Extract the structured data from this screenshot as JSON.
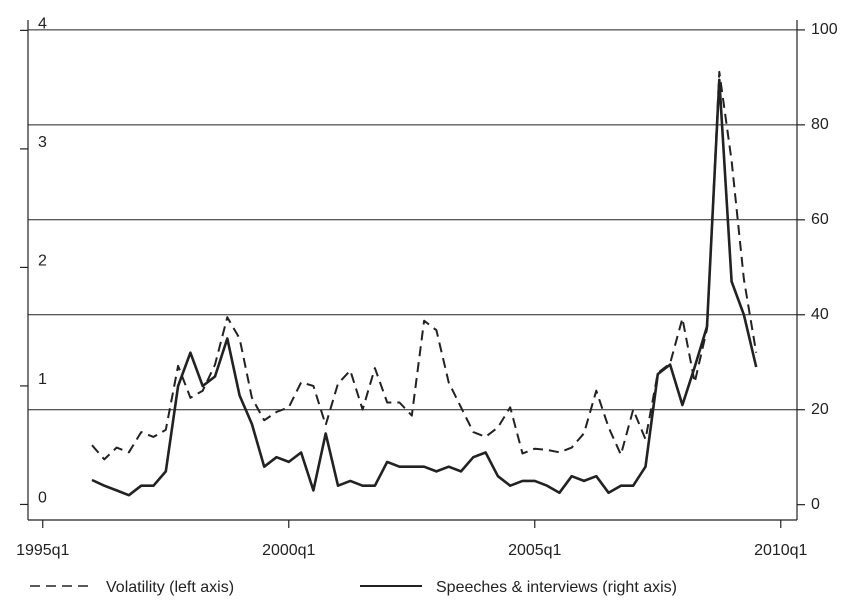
{
  "chart_data": {
    "type": "line",
    "x": [
      1996,
      1996.25,
      1996.5,
      1996.75,
      1997,
      1997.25,
      1997.5,
      1997.75,
      1998,
      1998.25,
      1998.5,
      1998.75,
      1999,
      1999.25,
      1999.5,
      1999.75,
      2000,
      2000.25,
      2000.5,
      2000.75,
      2001,
      2001.25,
      2001.5,
      2001.75,
      2002,
      2002.25,
      2002.5,
      2002.75,
      2003,
      2003.25,
      2003.5,
      2003.75,
      2004,
      2004.25,
      2004.5,
      2004.75,
      2005,
      2005.25,
      2005.5,
      2005.75,
      2006,
      2006.25,
      2006.5,
      2006.75,
      2007,
      2007.25,
      2007.5,
      2007.75,
      2008,
      2008.25,
      2008.5,
      2008.75,
      2009,
      2009.25,
      2009.5
    ],
    "series": [
      {
        "name": "Volatility (left axis)",
        "color": "#222222",
        "style": "dashed",
        "values": [
          0.5,
          0.38,
          0.48,
          0.44,
          0.61,
          0.57,
          0.63,
          1.17,
          0.9,
          0.96,
          1.18,
          1.58,
          1.4,
          0.9,
          0.71,
          0.78,
          0.82,
          1.03,
          1.0,
          0.67,
          1.02,
          1.13,
          0.8,
          1.15,
          0.86,
          0.86,
          0.75,
          1.55,
          1.47,
          1.03,
          0.82,
          0.61,
          0.57,
          0.65,
          0.82,
          0.43,
          0.47,
          0.46,
          0.44,
          0.48,
          0.6,
          0.96,
          0.65,
          0.42,
          0.8,
          0.55,
          1.11,
          1.19,
          1.57,
          1.03,
          1.48,
          3.65,
          2.9,
          1.9,
          1.28
        ]
      },
      {
        "name": "Speeches & interviews (right axis)",
        "color": "#222222",
        "style": "solid",
        "axis": "y2",
        "values": [
          5.2,
          4,
          3,
          2,
          4,
          4,
          7,
          25,
          32,
          25,
          27,
          35,
          23,
          17,
          8,
          10,
          9,
          11,
          3,
          15,
          4,
          5,
          4,
          4,
          9,
          8,
          8,
          8,
          7,
          8,
          7,
          10,
          11,
          6,
          4,
          5,
          5,
          4,
          2.5,
          6,
          5,
          6,
          2.5,
          4,
          4,
          8,
          27.5,
          29.5,
          21,
          29,
          37.5,
          89.5,
          47,
          40,
          29
        ]
      }
    ],
    "xlim": [
      1994.7,
      2010.33
    ],
    "xticks": [
      {
        "value": 1995,
        "label": "1995q1"
      },
      {
        "value": 2000,
        "label": "2000q1"
      },
      {
        "value": 2005,
        "label": "2005q1"
      },
      {
        "value": 2010,
        "label": "2010q1"
      }
    ],
    "ylim": [
      -0.03,
      4.02
    ],
    "yticks": [
      0,
      1,
      2,
      3,
      4
    ],
    "y2lim": [
      -0.7,
      100.4
    ],
    "y2ticks": [
      0,
      20,
      40,
      60,
      80,
      100
    ],
    "grid": true,
    "legend": "bottom"
  }
}
